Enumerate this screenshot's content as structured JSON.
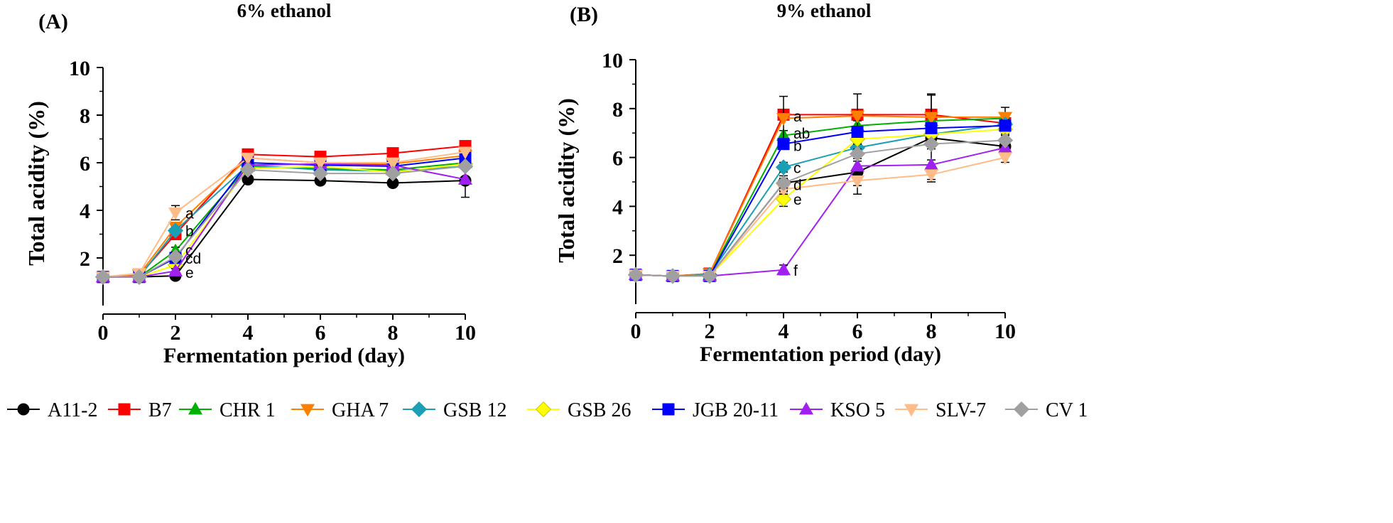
{
  "legend": {
    "items": [
      {
        "name": "A11-2",
        "color": "#000000",
        "marker": "circle"
      },
      {
        "name": "B7",
        "color": "#ff0000",
        "marker": "square"
      },
      {
        "name": "CHR 1",
        "color": "#00b000",
        "marker": "triangle-up"
      },
      {
        "name": "GHA 7",
        "color": "#ff7f00",
        "marker": "triangle-down"
      },
      {
        "name": "GSB 12",
        "color": "#1a9fb5",
        "marker": "diamond"
      },
      {
        "name": "GSB 26",
        "color": "#ffff00",
        "marker": "diamond"
      },
      {
        "name": "JGB 20-11",
        "color": "#0000ff",
        "marker": "square"
      },
      {
        "name": "KSO 5",
        "color": "#a020f0",
        "marker": "triangle-up"
      },
      {
        "name": "SLV-7",
        "color": "#ffbb88",
        "marker": "triangle-down"
      },
      {
        "name": "CV 1",
        "color": "#a0a0a0",
        "marker": "diamond"
      }
    ]
  },
  "chart_data": [
    {
      "type": "line",
      "panel_label": "(A)",
      "title": "6% ethanol",
      "xlabel": "Fermentation period (day)",
      "ylabel": "Total acidity (%)",
      "xlim": [
        0,
        10
      ],
      "ylim": [
        0,
        10
      ],
      "x_ticks": [
        "0",
        "2",
        "4",
        "6",
        "8",
        "10"
      ],
      "y_ticks": [
        "2",
        "4",
        "6",
        "8",
        "10"
      ],
      "x": [
        0,
        1,
        2,
        4,
        6,
        8,
        10
      ],
      "series": [
        {
          "name": "A11-2",
          "values": [
            1.2,
            1.2,
            1.25,
            5.3,
            5.25,
            5.15,
            5.25
          ],
          "errors": [
            0.05,
            0.05,
            0.05,
            0.1,
            0.1,
            0.1,
            0.7
          ]
        },
        {
          "name": "B7",
          "values": [
            1.2,
            1.25,
            3.0,
            6.35,
            6.25,
            6.4,
            6.7
          ],
          "errors": [
            0.05,
            0.05,
            0.2,
            0.1,
            0.1,
            0.1,
            0.1
          ]
        },
        {
          "name": "CHR 1",
          "values": [
            1.2,
            1.2,
            2.3,
            5.85,
            5.75,
            5.7,
            6.0
          ],
          "errors": [
            0.05,
            0.05,
            0.15,
            0.1,
            0.1,
            0.1,
            0.1
          ]
        },
        {
          "name": "GHA 7",
          "values": [
            1.2,
            1.3,
            3.3,
            6.2,
            6.0,
            5.95,
            6.3
          ],
          "errors": [
            0.05,
            0.05,
            0.2,
            0.1,
            0.1,
            0.1,
            0.1
          ]
        },
        {
          "name": "GSB 12",
          "values": [
            1.2,
            1.2,
            3.15,
            5.9,
            5.7,
            5.65,
            5.85
          ],
          "errors": [
            0.05,
            0.05,
            0.15,
            0.1,
            0.1,
            0.1,
            0.1
          ]
        },
        {
          "name": "GSB 26",
          "values": [
            1.2,
            1.2,
            1.7,
            5.75,
            5.85,
            5.6,
            5.95
          ],
          "errors": [
            0.05,
            0.05,
            0.15,
            0.1,
            0.1,
            0.1,
            0.1
          ]
        },
        {
          "name": "JGB 20-11",
          "values": [
            1.2,
            1.2,
            2.0,
            6.0,
            5.9,
            5.85,
            6.2
          ],
          "errors": [
            0.05,
            0.05,
            0.15,
            0.1,
            0.1,
            0.1,
            0.1
          ]
        },
        {
          "name": "KSO 5",
          "values": [
            1.2,
            1.2,
            1.45,
            5.9,
            5.95,
            5.9,
            5.3
          ],
          "errors": [
            0.05,
            0.05,
            0.1,
            0.1,
            0.1,
            0.1,
            0.1
          ]
        },
        {
          "name": "SLV-7",
          "values": [
            1.2,
            1.35,
            3.9,
            6.2,
            6.0,
            6.0,
            6.45
          ],
          "errors": [
            0.05,
            0.05,
            0.3,
            0.1,
            0.1,
            0.1,
            0.1
          ]
        },
        {
          "name": "CV 1",
          "values": [
            1.2,
            1.2,
            2.05,
            5.7,
            5.55,
            5.55,
            5.85
          ],
          "errors": [
            0.05,
            0.05,
            0.2,
            0.1,
            0.1,
            0.1,
            0.1
          ]
        }
      ],
      "annotations": [
        {
          "text": "a",
          "x": 2,
          "y": 3.9
        },
        {
          "text": "b",
          "x": 2,
          "y": 3.15
        },
        {
          "text": "c",
          "x": 2,
          "y": 2.35
        },
        {
          "text": "cd",
          "x": 2,
          "y": 2.0
        },
        {
          "text": "e",
          "x": 2,
          "y": 1.4
        }
      ]
    },
    {
      "type": "line",
      "panel_label": "(B)",
      "title": "9% ethanol",
      "xlabel": "Fermentation period (day)",
      "ylabel": "Total acidity (%)",
      "xlim": [
        0,
        10
      ],
      "ylim": [
        0,
        10
      ],
      "x_ticks": [
        "0",
        "2",
        "4",
        "6",
        "8",
        "10"
      ],
      "y_ticks": [
        "2",
        "4",
        "6",
        "8",
        "10"
      ],
      "x": [
        0,
        1,
        2,
        4,
        6,
        8,
        10
      ],
      "series": [
        {
          "name": "A11-2",
          "values": [
            1.2,
            1.15,
            1.15,
            4.95,
            5.4,
            6.8,
            6.45
          ],
          "errors": [
            0.05,
            0.05,
            0.05,
            0.3,
            0.9,
            1.8,
            0.2
          ]
        },
        {
          "name": "B7",
          "values": [
            1.2,
            1.15,
            1.25,
            7.75,
            7.75,
            7.75,
            7.4
          ],
          "errors": [
            0.05,
            0.05,
            0.05,
            0.2,
            0.2,
            0.2,
            0.2
          ]
        },
        {
          "name": "CHR 1",
          "values": [
            1.2,
            1.15,
            1.2,
            6.9,
            7.3,
            7.5,
            7.6
          ],
          "errors": [
            0.05,
            0.05,
            0.05,
            0.2,
            0.2,
            0.2,
            0.2
          ]
        },
        {
          "name": "GHA 7",
          "values": [
            1.2,
            1.15,
            1.25,
            7.6,
            7.7,
            7.65,
            7.65
          ],
          "errors": [
            0.05,
            0.05,
            0.05,
            0.9,
            0.9,
            0.9,
            0.4
          ]
        },
        {
          "name": "GSB 12",
          "values": [
            1.2,
            1.15,
            1.2,
            5.6,
            6.4,
            6.95,
            7.35
          ],
          "errors": [
            0.05,
            0.05,
            0.05,
            0.2,
            0.2,
            0.2,
            0.2
          ]
        },
        {
          "name": "GSB 26",
          "values": [
            1.2,
            1.15,
            1.15,
            4.3,
            6.75,
            6.95,
            7.15
          ],
          "errors": [
            0.05,
            0.05,
            0.05,
            0.3,
            0.2,
            0.2,
            0.2
          ]
        },
        {
          "name": "JGB 20-11",
          "values": [
            1.2,
            1.15,
            1.15,
            6.55,
            7.05,
            7.2,
            7.3
          ],
          "errors": [
            0.05,
            0.05,
            0.05,
            0.2,
            0.2,
            0.2,
            0.2
          ]
        },
        {
          "name": "KSO 5",
          "values": [
            1.2,
            1.15,
            1.15,
            1.4,
            5.65,
            5.7,
            6.4
          ],
          "errors": [
            0.05,
            0.05,
            0.05,
            0.2,
            0.2,
            0.2,
            0.2
          ]
        },
        {
          "name": "SLV-7",
          "values": [
            1.2,
            1.15,
            1.15,
            4.7,
            5.05,
            5.3,
            6.0
          ],
          "errors": [
            0.05,
            0.05,
            0.05,
            0.2,
            0.2,
            0.2,
            0.2
          ]
        },
        {
          "name": "CV 1",
          "values": [
            1.2,
            1.15,
            1.15,
            4.95,
            6.15,
            6.55,
            6.7
          ],
          "errors": [
            0.05,
            0.05,
            0.05,
            0.2,
            0.2,
            0.2,
            0.2
          ]
        }
      ],
      "annotations": [
        {
          "text": "a",
          "x": 4,
          "y": 7.7
        },
        {
          "text": "ab",
          "x": 4,
          "y": 7.0
        },
        {
          "text": "b",
          "x": 4,
          "y": 6.5
        },
        {
          "text": "c",
          "x": 4,
          "y": 5.6
        },
        {
          "text": "d",
          "x": 4,
          "y": 4.9
        },
        {
          "text": "e",
          "x": 4,
          "y": 4.3
        },
        {
          "text": "f",
          "x": 4,
          "y": 1.4
        }
      ]
    }
  ]
}
